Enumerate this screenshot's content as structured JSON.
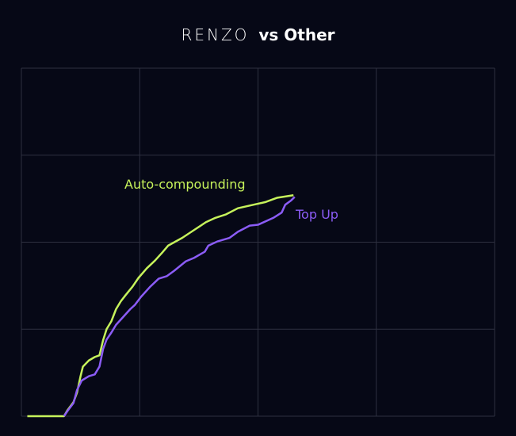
{
  "chart_data": {
    "type": "line",
    "title_logo": "RENZO",
    "title": "vs Other",
    "xlabel": "",
    "ylabel": "",
    "xlim": [
      0,
      4
    ],
    "ylim": [
      0,
      4
    ],
    "grid": true,
    "legend": "inline labels",
    "series": [
      {
        "name": "Auto-compounding",
        "color": "#c6f25b",
        "x": [
          0.05,
          0.36,
          0.39,
          0.44,
          0.47,
          0.5,
          0.52,
          0.57,
          0.62,
          0.66,
          0.69,
          0.72,
          0.76,
          0.8,
          0.84,
          0.88,
          0.94,
          0.99,
          1.06,
          1.13,
          1.19,
          1.24,
          1.36,
          1.46,
          1.56,
          1.64,
          1.73,
          1.83,
          1.96,
          2.06,
          2.16,
          2.3
        ],
        "y": [
          0,
          0,
          0.07,
          0.16,
          0.27,
          0.46,
          0.57,
          0.64,
          0.68,
          0.7,
          0.87,
          1.0,
          1.09,
          1.23,
          1.32,
          1.39,
          1.49,
          1.59,
          1.7,
          1.79,
          1.88,
          1.96,
          2.05,
          2.14,
          2.23,
          2.28,
          2.32,
          2.39,
          2.43,
          2.46,
          2.51,
          2.54
        ]
      },
      {
        "name": "Top Up",
        "color": "#8b5cf6",
        "x": [
          0.36,
          0.39,
          0.44,
          0.47,
          0.51,
          0.57,
          0.62,
          0.66,
          0.69,
          0.72,
          0.76,
          0.8,
          0.86,
          0.92,
          0.96,
          1.01,
          1.09,
          1.16,
          1.23,
          1.29,
          1.39,
          1.46,
          1.55,
          1.58,
          1.66,
          1.76,
          1.83,
          1.93,
          2.0,
          2.13,
          2.2,
          2.23,
          2.28,
          2.31
        ],
        "y": [
          0,
          0.06,
          0.15,
          0.3,
          0.41,
          0.46,
          0.48,
          0.57,
          0.77,
          0.88,
          0.96,
          1.05,
          1.14,
          1.23,
          1.28,
          1.37,
          1.49,
          1.58,
          1.61,
          1.67,
          1.78,
          1.82,
          1.89,
          1.96,
          2.01,
          2.05,
          2.12,
          2.19,
          2.2,
          2.28,
          2.34,
          2.43,
          2.48,
          2.52
        ]
      }
    ]
  },
  "colors": {
    "background": "#060816",
    "grid": "#2e3140",
    "title": "#ffffff"
  }
}
